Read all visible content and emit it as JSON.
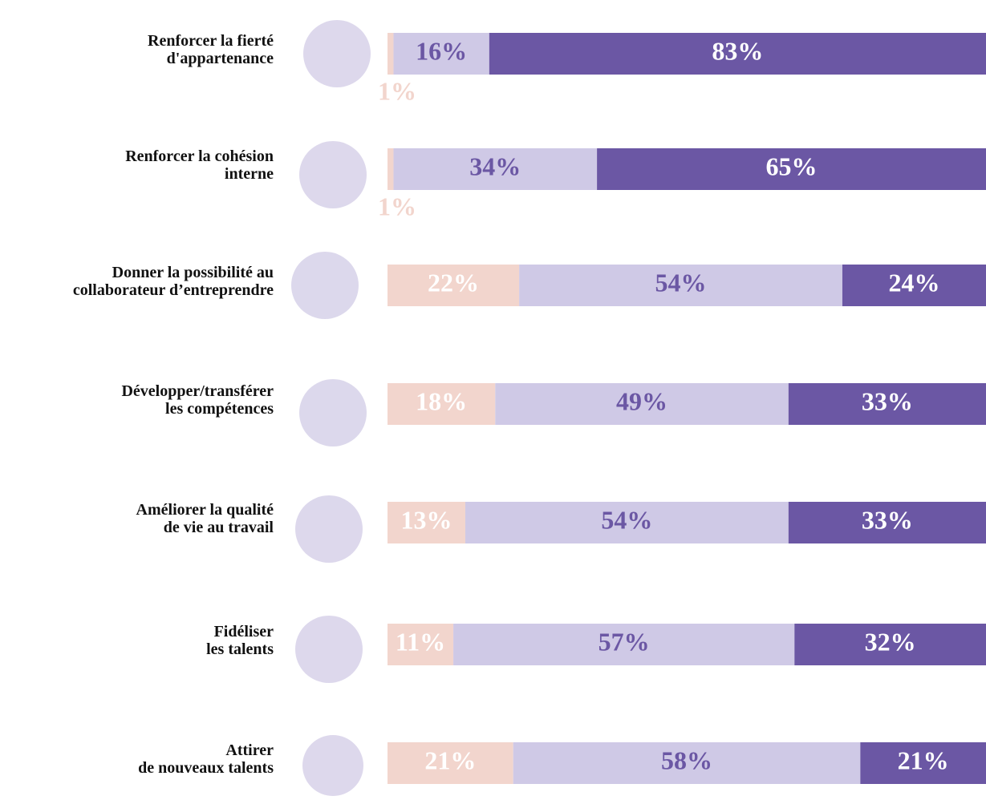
{
  "chart_data": {
    "type": "stacked-bar-horizontal",
    "categories": [
      [
        "Renforcer la fierté",
        "d'appartenance"
      ],
      [
        "Renforcer la cohésion",
        "interne"
      ],
      [
        "Donner la possibilité au",
        "collaborateur d’entreprendre"
      ],
      [
        "Développer/transférer",
        "les compétences"
      ],
      [
        "Améliorer la qualité",
        "de vie au travail"
      ],
      [
        "Fidéliser",
        "les talents"
      ],
      [
        "Attirer",
        "de nouveaux talents"
      ]
    ],
    "xlim": [
      0,
      100
    ],
    "series": [
      {
        "color": "#f2d5cd",
        "values": [
          1,
          1,
          22,
          18,
          13,
          11,
          21
        ],
        "value_labels": [
          "1%",
          "1%",
          "22%",
          "18%",
          "13%",
          "11%",
          "21%"
        ]
      },
      {
        "color": "#cfc9e6",
        "values": [
          16,
          34,
          54,
          49,
          54,
          57,
          58
        ],
        "value_labels": [
          "16%",
          "34%",
          "54%",
          "49%",
          "54%",
          "57%",
          "58%"
        ]
      },
      {
        "color": "#6b57a4",
        "values": [
          83,
          65,
          24,
          33,
          33,
          32,
          21
        ],
        "value_labels": [
          "83%",
          "65%",
          "24%",
          "33%",
          "33%",
          "32%",
          "21%"
        ]
      }
    ]
  }
}
